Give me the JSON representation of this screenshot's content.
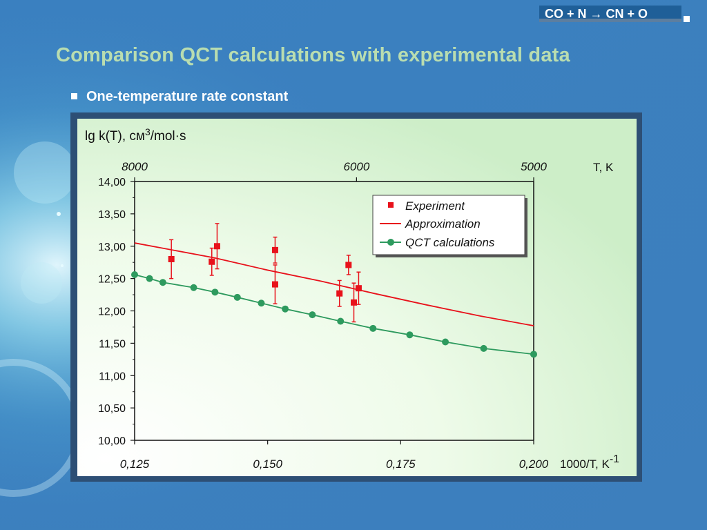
{
  "header": {
    "corner_label": "CO + N → CN + O",
    "title": "Comparison QCT calculations with experimental data",
    "subtitle": "One-temperature rate constant"
  },
  "chart_data": {
    "type": "line",
    "ylabel": "lg k(T), см³/mol·s",
    "ylabel_parts": {
      "base": "lg k(T), см",
      "sup": "3",
      "rest": "/mol·s"
    },
    "xlabel": "1000/T, K⁻¹",
    "xlabel_parts": {
      "base": "1000/T, K",
      "sup": "-1"
    },
    "x2label": "T, K",
    "xlim": [
      0.125,
      0.2
    ],
    "ylim": [
      10.0,
      14.0
    ],
    "x_ticks": [
      0.125,
      0.15,
      0.175,
      0.2
    ],
    "x_tick_labels": [
      "0,125",
      "0,150",
      "0,175",
      "0,200"
    ],
    "y_ticks": [
      10.0,
      10.5,
      11.0,
      11.5,
      12.0,
      12.5,
      13.0,
      13.5,
      14.0
    ],
    "y_tick_labels": [
      "10,00",
      "10,50",
      "11,00",
      "11,50",
      "12,00",
      "12,50",
      "13,00",
      "13,50",
      "14,00"
    ],
    "top_ticks": [
      {
        "label": "8000",
        "x": 0.125
      },
      {
        "label": "6000",
        "x": 0.1667
      },
      {
        "label": "5000",
        "x": 0.2
      }
    ],
    "legend_position": "top-right",
    "grid": false,
    "series": [
      {
        "name": "Experiment",
        "kind": "scatter-errorbar",
        "color": "#e8121b",
        "points": [
          {
            "x": 0.1319,
            "y": 12.8,
            "err": 0.3
          },
          {
            "x": 0.1395,
            "y": 12.76,
            "err": 0.21
          },
          {
            "x": 0.1405,
            "y": 13.0,
            "err": 0.35
          },
          {
            "x": 0.1514,
            "y": 12.94,
            "err": 0.2
          },
          {
            "x": 0.1514,
            "y": 12.41,
            "err": 0.3
          },
          {
            "x": 0.1635,
            "y": 12.27,
            "err": 0.2
          },
          {
            "x": 0.1652,
            "y": 12.71,
            "err": 0.15
          },
          {
            "x": 0.1662,
            "y": 12.13,
            "err": 0.3
          },
          {
            "x": 0.1671,
            "y": 12.35,
            "err": 0.25
          }
        ]
      },
      {
        "name": "Approximation",
        "kind": "line",
        "color": "#e8121b",
        "x": [
          0.125,
          0.14,
          0.15,
          0.16,
          0.17,
          0.18,
          0.19,
          0.2
        ],
        "y": [
          13.05,
          12.82,
          12.63,
          12.46,
          12.27,
          12.09,
          11.92,
          11.77
        ]
      },
      {
        "name": "QCT calculations",
        "kind": "line-marker",
        "color": "#2e9a5e",
        "x": [
          0.125,
          0.1278,
          0.1303,
          0.1361,
          0.1401,
          0.1443,
          0.1488,
          0.1533,
          0.1584,
          0.1637,
          0.1698,
          0.1767,
          0.1834,
          0.1906,
          0.2
        ],
        "y": [
          12.56,
          12.5,
          12.44,
          12.36,
          12.29,
          12.21,
          12.12,
          12.03,
          11.94,
          11.84,
          11.73,
          11.63,
          11.52,
          11.42,
          11.33
        ]
      }
    ]
  }
}
